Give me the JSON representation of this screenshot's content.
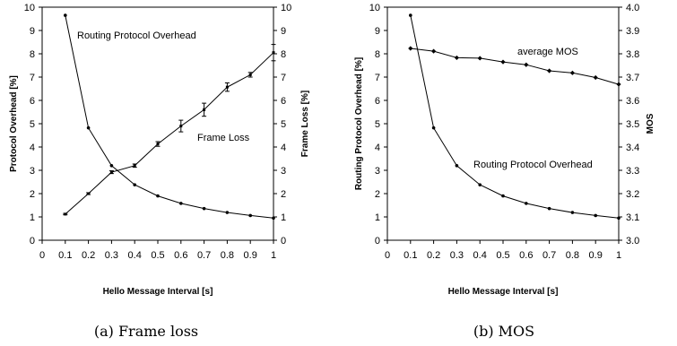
{
  "chart_data": [
    {
      "type": "line",
      "caption": "(a) Frame loss",
      "xlabel": "Hello Message Interval [s]",
      "ylabel_left": "Protocol Overhead [%]",
      "ylabel_right": "Frame Loss [%]",
      "xlim": [
        0,
        1
      ],
      "ylim_left": [
        0,
        10
      ],
      "ylim_right": [
        0,
        10
      ],
      "x_ticks": [
        "0",
        "0.1",
        "0.2",
        "0.3",
        "0.4",
        "0.5",
        "0.6",
        "0.7",
        "0.8",
        "0.9",
        "1"
      ],
      "y_ticks_left": [
        "0",
        "1",
        "2",
        "3",
        "4",
        "5",
        "6",
        "7",
        "8",
        "9",
        "10"
      ],
      "y_ticks_right": [
        "0",
        "1",
        "2",
        "3",
        "4",
        "5",
        "6",
        "7",
        "8",
        "9",
        "10"
      ],
      "x": [
        0.1,
        0.2,
        0.3,
        0.4,
        0.5,
        0.6,
        0.7,
        0.8,
        0.9,
        1.0
      ],
      "series": [
        {
          "name": "Routing Protocol Overhead",
          "axis": "left",
          "marker": "dot",
          "values": [
            9.65,
            4.82,
            3.2,
            2.38,
            1.9,
            1.58,
            1.36,
            1.19,
            1.06,
            0.95
          ]
        },
        {
          "name": "Frame Loss",
          "axis": "right",
          "marker": "errorbar",
          "values": [
            1.12,
            2.0,
            2.92,
            3.2,
            4.13,
            4.9,
            5.6,
            6.57,
            7.1,
            8.05
          ],
          "error": [
            0.03,
            0.04,
            0.06,
            0.07,
            0.1,
            0.25,
            0.28,
            0.18,
            0.1,
            0.35
          ]
        }
      ]
    },
    {
      "type": "line",
      "caption": "(b) MOS",
      "xlabel": "Hello Message Interval [s]",
      "ylabel_left": "Routing Protocol Overhead [%]",
      "ylabel_right": "MOS",
      "xlim": [
        0,
        1
      ],
      "ylim_left": [
        0,
        10
      ],
      "ylim_right": [
        3.0,
        4.0
      ],
      "x_ticks": [
        "0",
        "0.1",
        "0.2",
        "0.3",
        "0.4",
        "0.5",
        "0.6",
        "0.7",
        "0.8",
        "0.9",
        "1"
      ],
      "y_ticks_left": [
        "0",
        "1",
        "2",
        "3",
        "4",
        "5",
        "6",
        "7",
        "8",
        "9",
        "10"
      ],
      "y_ticks_right": [
        "3.0",
        "3.1",
        "3.2",
        "3.3",
        "3.4",
        "3.5",
        "3.6",
        "3.7",
        "3.8",
        "3.9",
        "4.0"
      ],
      "x": [
        0.1,
        0.2,
        0.3,
        0.4,
        0.5,
        0.6,
        0.7,
        0.8,
        0.9,
        1.0
      ],
      "series": [
        {
          "name": "Routing Protocol Overhead",
          "axis": "left",
          "marker": "dot",
          "values": [
            9.65,
            4.82,
            3.2,
            2.38,
            1.9,
            1.58,
            1.36,
            1.19,
            1.06,
            0.95
          ]
        },
        {
          "name": "average MOS",
          "axis": "right",
          "marker": "diamond",
          "values": [
            3.823,
            3.811,
            3.783,
            3.781,
            3.765,
            3.753,
            3.727,
            3.718,
            3.698,
            3.669
          ]
        }
      ]
    }
  ]
}
